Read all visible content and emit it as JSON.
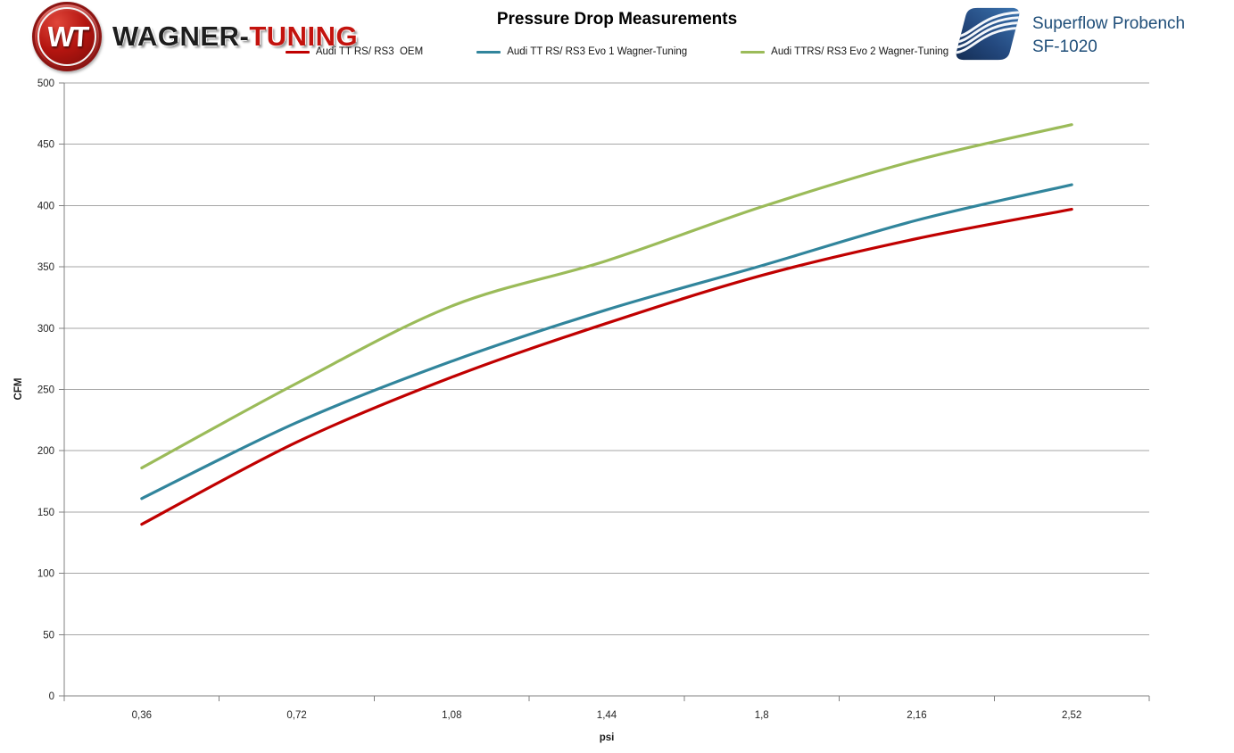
{
  "header": {
    "logo": {
      "emblem_monogram": "WT",
      "wordmark_black": "WAGNER-",
      "wordmark_red": "TUNING"
    },
    "superflow": {
      "line1": "Superflow Probench",
      "line2": "SF-1020"
    }
  },
  "chart_data": {
    "type": "line",
    "title": "Pressure Drop Measurements",
    "categories": [
      "0,36",
      "0,72",
      "1,08",
      "1,44",
      "1,8",
      "2,16",
      "2,52"
    ],
    "xlabel": "psi",
    "ylabel": "CFM",
    "ylim": [
      0,
      500
    ],
    "ytick_step": 50,
    "grid": true,
    "legend_position": "top",
    "smooth_lines": true,
    "series": [
      {
        "name": "Audi TT RS/ RS3  OEM",
        "color": "#C00000",
        "values": [
          140,
          207,
          260,
          304,
          343,
          373,
          397
        ]
      },
      {
        "name": "Audi TT RS/ RS3 Evo 1 Wagner-Tuning",
        "color": "#31859C",
        "values": [
          161,
          223,
          273,
          315,
          351,
          388,
          417
        ]
      },
      {
        "name": "Audi TTRS/ RS3 Evo 2 Wagner-Tuning",
        "color": "#9BBB59",
        "values": [
          186,
          255,
          318,
          355,
          399,
          437,
          466
        ]
      }
    ]
  },
  "colors": {
    "axis": "#808080",
    "grid": "#A6A6A6",
    "tick_text": "#262626",
    "wagner_red": "#C3130E",
    "superflow_blue": "#1F4E79"
  }
}
